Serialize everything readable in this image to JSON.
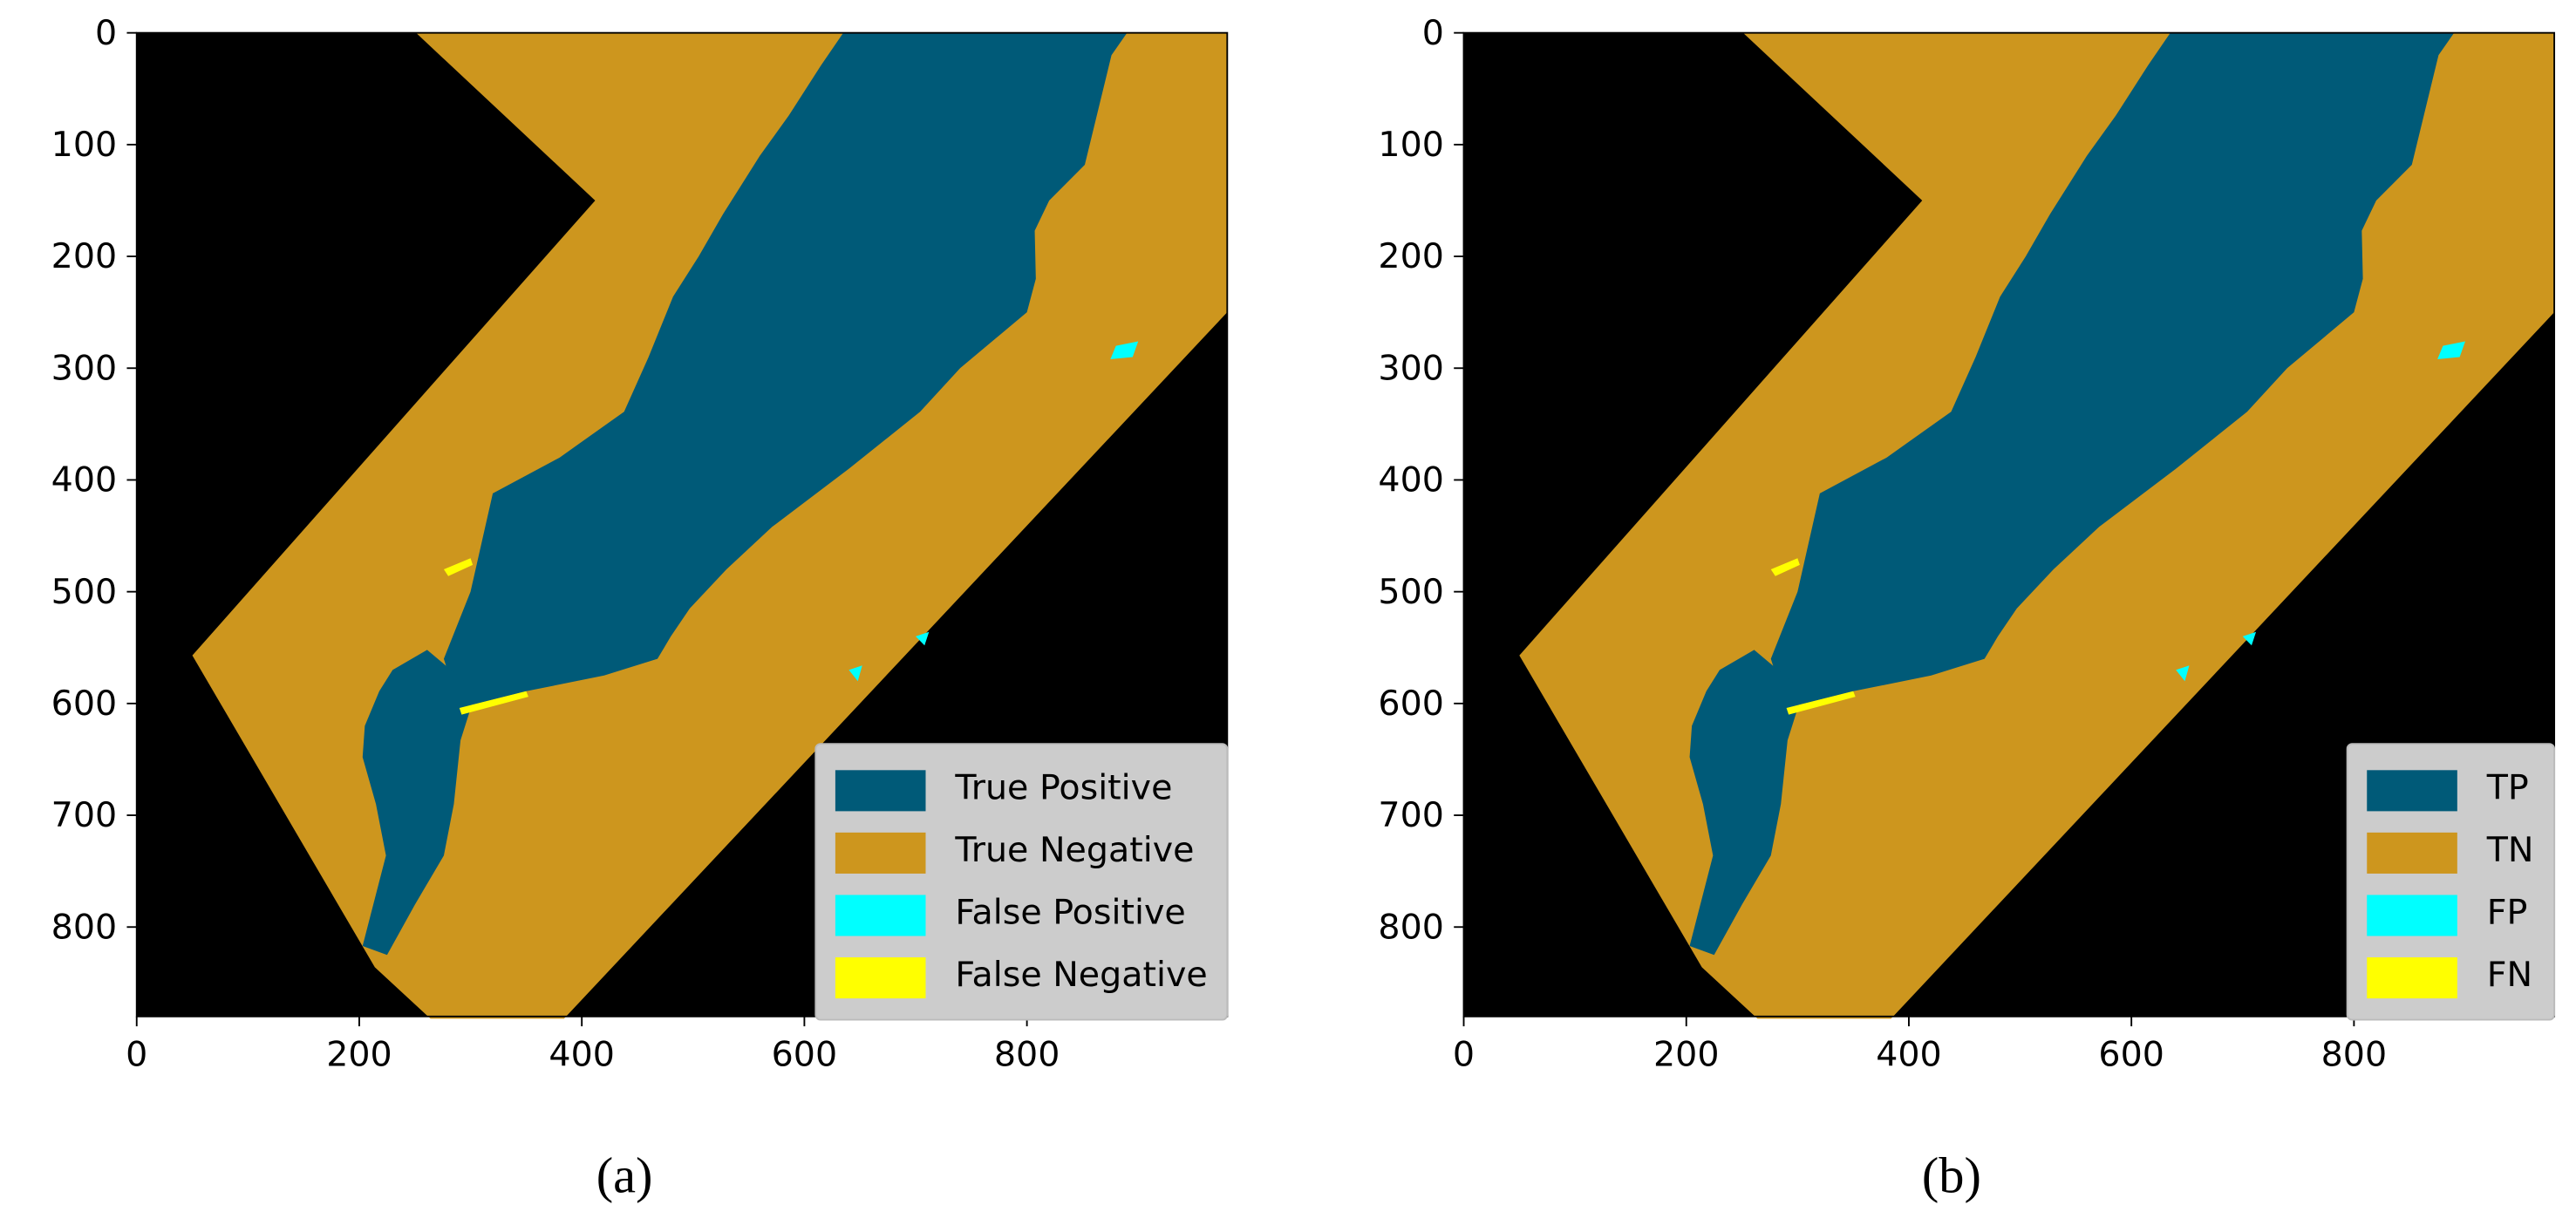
{
  "chart_data": [
    {
      "type": "image",
      "caption": "(a)",
      "xlim": [
        0,
        980
      ],
      "ylim": [
        880,
        0
      ],
      "xticks": [
        0,
        200,
        400,
        600,
        800
      ],
      "yticks": [
        0,
        100,
        200,
        300,
        400,
        500,
        600,
        700,
        800
      ],
      "legend": "lower right",
      "series": [
        {
          "name": "True Positive",
          "color": "#005a78"
        },
        {
          "name": "True Negative",
          "color": "#cd961e"
        },
        {
          "name": "False Positive",
          "color": "#00ffff"
        },
        {
          "name": "False Negative",
          "color": "#ffff00"
        }
      ]
    },
    {
      "type": "image",
      "caption": "(b)",
      "xlim": [
        0,
        980
      ],
      "ylim": [
        880,
        0
      ],
      "xticks": [
        0,
        200,
        400,
        600,
        800
      ],
      "yticks": [
        0,
        100,
        200,
        300,
        400,
        500,
        600,
        700,
        800
      ],
      "legend": "lower right",
      "series": [
        {
          "name": "TP",
          "color": "#005a78"
        },
        {
          "name": "TN",
          "color": "#cd961e"
        },
        {
          "name": "FP",
          "color": "#00ffff"
        },
        {
          "name": "FN",
          "color": "#ffff00"
        }
      ]
    }
  ]
}
